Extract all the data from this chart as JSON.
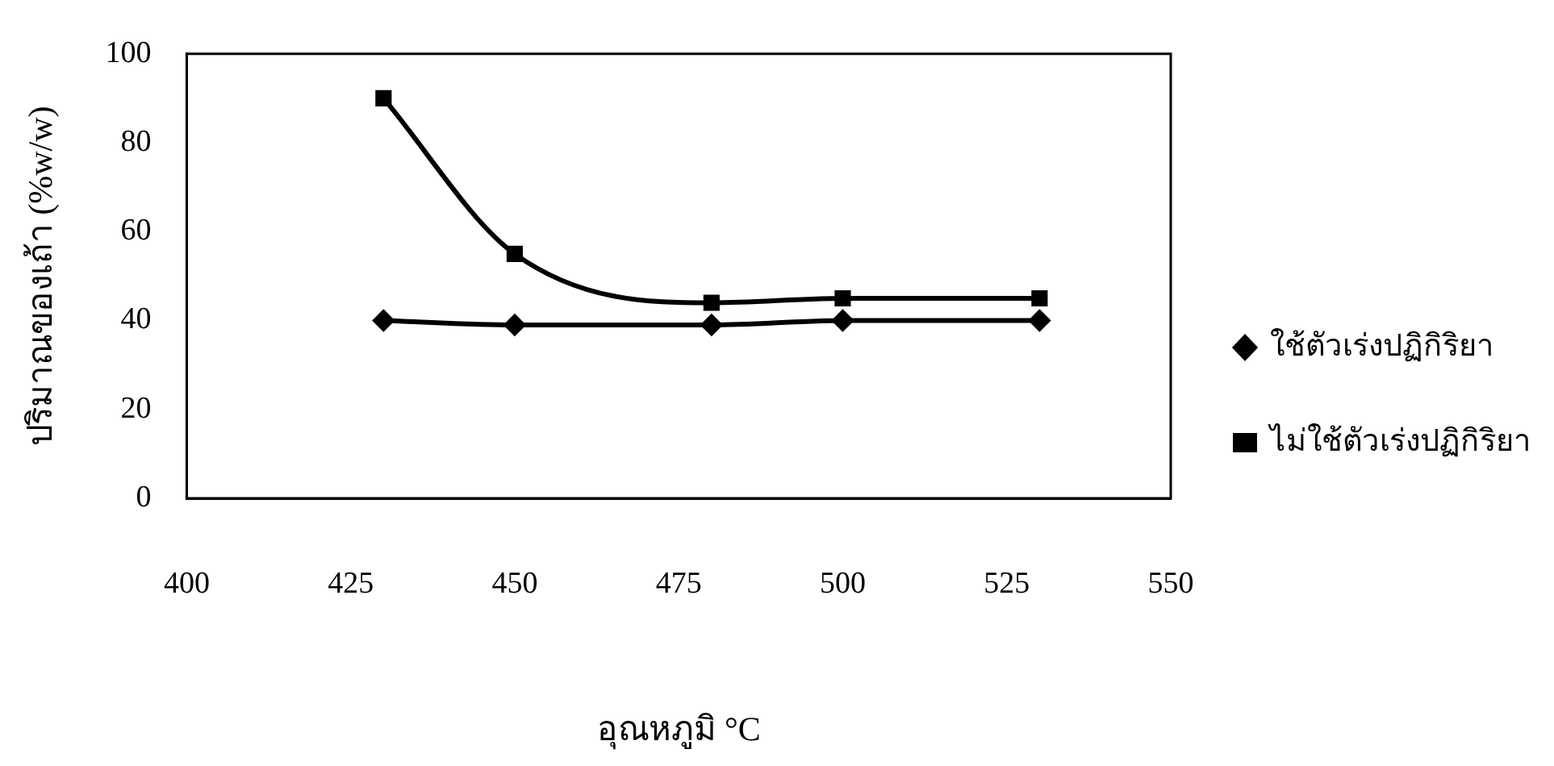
{
  "chart_data": {
    "type": "line",
    "xlabel": "อุณหภูมิ °C",
    "ylabel": "ปริมาณของเถ้า (%w/w)",
    "x": [
      430,
      450,
      480,
      500,
      530
    ],
    "series": [
      {
        "name": "ใช้ตัวเร่งปฏิกิริยา",
        "color": "#000000",
        "marker": "diamond",
        "values": [
          40,
          39,
          39,
          40,
          40
        ]
      },
      {
        "name": "ไม่ใช้ตัวเร่งปฏิกิริยา",
        "color": "#000000",
        "marker": "square",
        "values": [
          90,
          55,
          44,
          45,
          45
        ]
      }
    ],
    "xlim": [
      400,
      550
    ],
    "xticks": [
      400,
      425,
      450,
      475,
      500,
      525,
      550
    ],
    "ylim": [
      0,
      100
    ],
    "yticks": [
      0,
      20,
      40,
      60,
      80,
      100
    ],
    "grid": false,
    "legend": "right",
    "line_style": "solid"
  }
}
